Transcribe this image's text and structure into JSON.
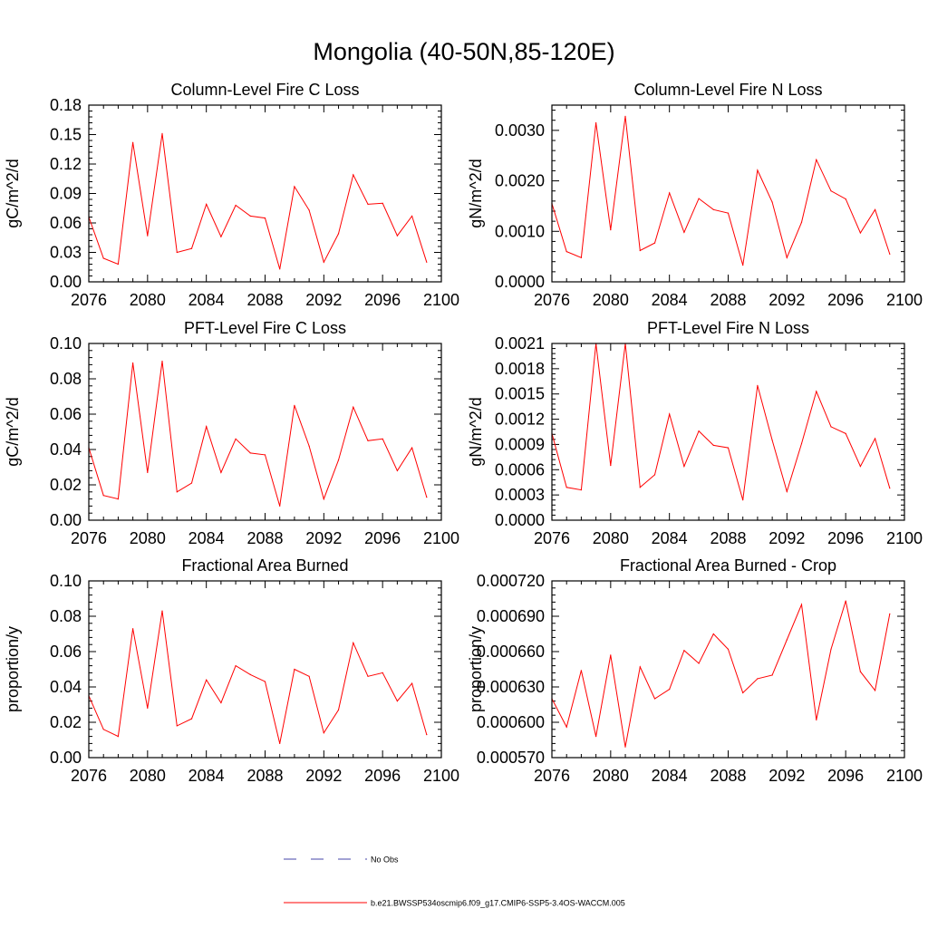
{
  "figure": {
    "title": "Mongolia (40-50N,85-120E)",
    "line_color": "#ff0000",
    "obs_color": "#4444aa"
  },
  "legend": {
    "items": [
      {
        "label": "No Obs",
        "style": "dashed",
        "color": "#4444aa"
      },
      {
        "label": "b.e21.BWSSP534oscmip6.f09_g17.CMIP6-SSP5-3.4OS-WACCM.005",
        "style": "solid",
        "color": "#ff0000"
      }
    ]
  },
  "chart_data": [
    {
      "type": "line",
      "title": "Column-Level Fire C Loss",
      "ylabel": "gC/m^2/d",
      "xlim": [
        2076,
        2100
      ],
      "ylim": [
        0,
        0.18
      ],
      "xticks": [
        "2076",
        "2080",
        "2084",
        "2088",
        "2092",
        "2096",
        "2100"
      ],
      "yticks": [
        "0.00",
        "0.03",
        "0.06",
        "0.09",
        "0.12",
        "0.15",
        "0.18"
      ],
      "x": [
        2076,
        2077,
        2078,
        2079,
        2080,
        2081,
        2082,
        2083,
        2084,
        2085,
        2086,
        2087,
        2088,
        2089,
        2090,
        2091,
        2092,
        2093,
        2094,
        2095,
        2096,
        2097,
        2098,
        2099
      ],
      "series": [
        {
          "values": [
            0.066,
            0.024,
            0.018,
            0.142,
            0.047,
            0.151,
            0.03,
            0.034,
            0.079,
            0.046,
            0.078,
            0.067,
            0.065,
            0.013,
            0.097,
            0.073,
            0.02,
            0.049,
            0.109,
            0.079,
            0.08,
            0.047,
            0.067,
            0.02
          ]
        }
      ]
    },
    {
      "type": "line",
      "title": "Column-Level Fire N Loss",
      "ylabel": "gN/m^2/d",
      "xlim": [
        2076,
        2100
      ],
      "ylim": [
        0,
        0.0035
      ],
      "xticks": [
        "2076",
        "2080",
        "2084",
        "2088",
        "2092",
        "2096",
        "2100"
      ],
      "yticks": [
        "0.0000",
        "0.0010",
        "0.0020",
        "0.0030"
      ],
      "x": [
        2076,
        2077,
        2078,
        2079,
        2080,
        2081,
        2082,
        2083,
        2084,
        2085,
        2086,
        2087,
        2088,
        2089,
        2090,
        2091,
        2092,
        2093,
        2094,
        2095,
        2096,
        2097,
        2098,
        2099
      ],
      "series": [
        {
          "values": [
            0.00155,
            0.0006,
            0.00048,
            0.00315,
            0.00103,
            0.00328,
            0.00062,
            0.00077,
            0.00176,
            0.00098,
            0.00165,
            0.00143,
            0.00136,
            0.00033,
            0.00221,
            0.00158,
            0.00048,
            0.00118,
            0.00242,
            0.0018,
            0.00164,
            0.00097,
            0.00143,
            0.00055
          ]
        }
      ]
    },
    {
      "type": "line",
      "title": "PFT-Level Fire C Loss",
      "ylabel": "gC/m^2/d",
      "xlim": [
        2076,
        2100
      ],
      "ylim": [
        0,
        0.1
      ],
      "xticks": [
        "2076",
        "2080",
        "2084",
        "2088",
        "2092",
        "2096",
        "2100"
      ],
      "yticks": [
        "0.00",
        "0.02",
        "0.04",
        "0.06",
        "0.08",
        "0.10"
      ],
      "x": [
        2076,
        2077,
        2078,
        2079,
        2080,
        2081,
        2082,
        2083,
        2084,
        2085,
        2086,
        2087,
        2088,
        2089,
        2090,
        2091,
        2092,
        2093,
        2094,
        2095,
        2096,
        2097,
        2098,
        2099
      ],
      "series": [
        {
          "values": [
            0.041,
            0.014,
            0.012,
            0.089,
            0.027,
            0.09,
            0.016,
            0.021,
            0.053,
            0.027,
            0.046,
            0.038,
            0.037,
            0.008,
            0.065,
            0.042,
            0.012,
            0.034,
            0.064,
            0.045,
            0.046,
            0.028,
            0.041,
            0.013
          ]
        }
      ]
    },
    {
      "type": "line",
      "title": "PFT-Level Fire N Loss",
      "ylabel": "gN/m^2/d",
      "xlim": [
        2076,
        2100
      ],
      "ylim": [
        0,
        0.0021
      ],
      "xticks": [
        "2076",
        "2080",
        "2084",
        "2088",
        "2092",
        "2096",
        "2100"
      ],
      "yticks": [
        "0.0000",
        "0.0003",
        "0.0006",
        "0.0009",
        "0.0012",
        "0.0015",
        "0.0018",
        "0.0021"
      ],
      "x": [
        2076,
        2077,
        2078,
        2079,
        2080,
        2081,
        2082,
        2083,
        2084,
        2085,
        2086,
        2087,
        2088,
        2089,
        2090,
        2091,
        2092,
        2093,
        2094,
        2095,
        2096,
        2097,
        2098,
        2099
      ],
      "series": [
        {
          "values": [
            0.00103,
            0.00039,
            0.00036,
            0.0021,
            0.00065,
            0.0021,
            0.00039,
            0.00054,
            0.00126,
            0.00064,
            0.00106,
            0.00089,
            0.00086,
            0.00024,
            0.0016,
            0.00095,
            0.00034,
            0.00091,
            0.00153,
            0.00111,
            0.00103,
            0.00064,
            0.00097,
            0.00038
          ]
        }
      ]
    },
    {
      "type": "line",
      "title": "Fractional Area Burned",
      "ylabel": "proportion/y",
      "xlim": [
        2076,
        2100
      ],
      "ylim": [
        0,
        0.1
      ],
      "xticks": [
        "2076",
        "2080",
        "2084",
        "2088",
        "2092",
        "2096",
        "2100"
      ],
      "yticks": [
        "0.00",
        "0.02",
        "0.04",
        "0.06",
        "0.08",
        "0.10"
      ],
      "x": [
        2076,
        2077,
        2078,
        2079,
        2080,
        2081,
        2082,
        2083,
        2084,
        2085,
        2086,
        2087,
        2088,
        2089,
        2090,
        2091,
        2092,
        2093,
        2094,
        2095,
        2096,
        2097,
        2098,
        2099
      ],
      "series": [
        {
          "values": [
            0.035,
            0.016,
            0.012,
            0.073,
            0.028,
            0.083,
            0.018,
            0.022,
            0.044,
            0.031,
            0.052,
            0.047,
            0.043,
            0.008,
            0.05,
            0.046,
            0.014,
            0.027,
            0.065,
            0.046,
            0.048,
            0.032,
            0.042,
            0.013
          ]
        }
      ]
    },
    {
      "type": "line",
      "title": "Fractional Area Burned - Crop",
      "ylabel": "proportion/y",
      "xlim": [
        2076,
        2100
      ],
      "ylim": [
        0.00057,
        0.00072
      ],
      "xticks": [
        "2076",
        "2080",
        "2084",
        "2088",
        "2092",
        "2096",
        "2100"
      ],
      "yticks": [
        "0.000570",
        "0.000600",
        "0.000630",
        "0.000660",
        "0.000690",
        "0.000720"
      ],
      "x": [
        2076,
        2077,
        2078,
        2079,
        2080,
        2081,
        2082,
        2083,
        2084,
        2085,
        2086,
        2087,
        2088,
        2089,
        2090,
        2091,
        2092,
        2093,
        2094,
        2095,
        2096,
        2097,
        2098,
        2099
      ],
      "series": [
        {
          "values": [
            0.00062,
            0.000596,
            0.000644,
            0.000588,
            0.000657,
            0.000579,
            0.000647,
            0.00062,
            0.000628,
            0.000661,
            0.00065,
            0.000675,
            0.000662,
            0.000625,
            0.000637,
            0.00064,
            0.00067,
            0.0007,
            0.000602,
            0.000662,
            0.000703,
            0.000643,
            0.000627,
            0.000692
          ]
        }
      ]
    }
  ]
}
